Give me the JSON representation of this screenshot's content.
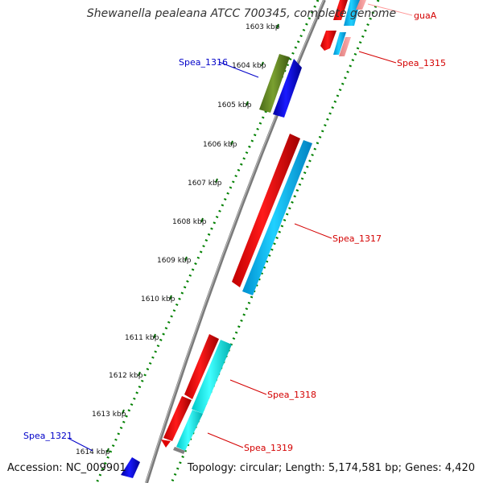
{
  "title": "Shewanella pealeana ATCC 700345, complete genome",
  "footer": {
    "accession": "Accession: NC_009901",
    "topology": "Topology: circular; Length: 5,174,581 bp; Genes: 4,420"
  },
  "ticks": [
    "1603 kbp",
    "1604 kbp",
    "1605 kbp",
    "1606 kbp",
    "1607 kbp",
    "1608 kbp",
    "1609 kbp",
    "1610 kbp",
    "1611 kbp",
    "1612 kbp",
    "1613 kbp",
    "1614 kbp"
  ],
  "genes": [
    {
      "name": "guaA",
      "color": "#d40000"
    },
    {
      "name": "Spea_1315",
      "color": "#d40000"
    },
    {
      "name": "Spea_1316",
      "color": "#0000c8"
    },
    {
      "name": "Spea_1317",
      "color": "#d40000"
    },
    {
      "name": "Spea_1318",
      "color": "#d40000"
    },
    {
      "name": "Spea_1319",
      "color": "#d40000"
    },
    {
      "name": "Spea_1321",
      "color": "#0000c8"
    }
  ],
  "colors": {
    "backbone": "#808080",
    "forward_cds": "#ff0000",
    "reverse_cds": "#0000ff",
    "cog_cyan": "#00c8ff",
    "cog_aqua": "#00ffff",
    "cog_olive": "#6b8e23",
    "dotted_track": "#008000"
  }
}
